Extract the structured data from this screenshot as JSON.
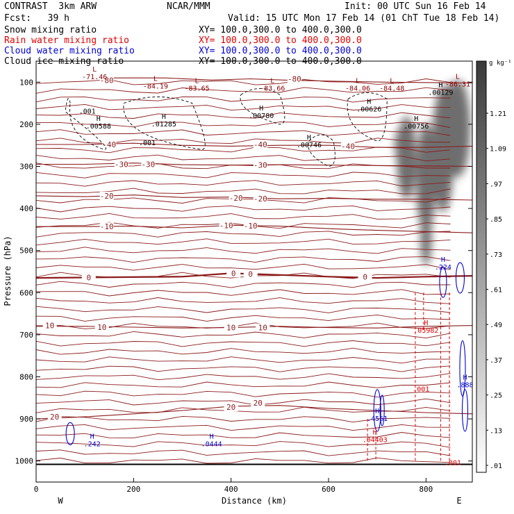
{
  "header": {
    "model": "CONTRAST  3km ARW",
    "org": "NCAR/MMM",
    "init": "Init: 00 UTC Sun 16 Feb 14",
    "fcst": "Fcst:   39 h",
    "valid": "Valid: 15 UTC Mon 17 Feb 14 (01 ChT Tue 18 Feb 14)",
    "fields": [
      {
        "label": "Snow mixing ratio",
        "xy": "XY= 100.0,300.0 to 400.0,300.0",
        "color": "#000000"
      },
      {
        "label": "Rain water mixing ratio",
        "xy": "XY= 100.0,300.0 to 400.0,300.0",
        "color": "#e00000"
      },
      {
        "label": "Cloud water mixing ratio",
        "xy": "XY= 100.0,300.0 to 400.0,300.0",
        "color": "#0000d0"
      },
      {
        "label": "Cloud ice mixing ratio",
        "xy": "XY= 100.0,300.0 to 400.0,300.0",
        "color": "#000000"
      }
    ]
  },
  "chart_data": {
    "type": "contour",
    "xlabel": "Distance (km)",
    "ylabel": "Pressure (hPa)",
    "xlim": [
      0,
      895
    ],
    "ylim": [
      1050,
      50
    ],
    "x_ticks": [
      0,
      200,
      400,
      600,
      800
    ],
    "y_ticks": [
      100,
      200,
      300,
      400,
      500,
      600,
      700,
      800,
      900,
      1000
    ],
    "x_end_labels": {
      "left": "W",
      "right": "E"
    },
    "colorbar": {
      "unit": "g kg⁻¹",
      "ticks": [
        "1.21",
        "1.09",
        ".97",
        ".85",
        ".73",
        ".61",
        ".49",
        ".37",
        ".25",
        ".13",
        ".01"
      ]
    },
    "temperature_contours": [
      {
        "label": "-80",
        "points": [
          [
            140,
            90
          ],
          [
            195,
            90
          ],
          [
            265,
            90
          ],
          [
            360,
            95
          ],
          [
            440,
            92
          ],
          [
            510,
            95
          ],
          [
            620,
            98
          ],
          [
            720,
            100
          ],
          [
            895,
            102
          ]
        ],
        "label_at": [
          [
            145,
            95
          ],
          [
            530,
            92
          ]
        ]
      },
      {
        "label": "-40",
        "points": [
          [
            0,
            248
          ],
          [
            100,
            248
          ],
          [
            200,
            245
          ],
          [
            300,
            250
          ],
          [
            400,
            252
          ],
          [
            500,
            250
          ],
          [
            600,
            250
          ],
          [
            700,
            255
          ],
          [
            800,
            255
          ],
          [
            895,
            252
          ]
        ],
        "label_at": [
          [
            150,
            248
          ],
          [
            460,
            248
          ],
          [
            640,
            252
          ]
        ]
      },
      {
        "label": "-30",
        "points": [
          [
            0,
            295
          ],
          [
            100,
            295
          ],
          [
            200,
            292
          ],
          [
            300,
            296
          ],
          [
            400,
            297
          ],
          [
            500,
            296
          ],
          [
            600,
            297
          ],
          [
            700,
            298
          ],
          [
            800,
            299
          ],
          [
            895,
            300
          ]
        ],
        "label_at": [
          [
            175,
            295
          ],
          [
            230,
            295
          ],
          [
            460,
            297
          ]
        ]
      },
      {
        "label": "-20",
        "points": [
          [
            0,
            370
          ],
          [
            100,
            372
          ],
          [
            200,
            368
          ],
          [
            300,
            374
          ],
          [
            400,
            373
          ],
          [
            500,
            377
          ],
          [
            600,
            376
          ],
          [
            700,
            378
          ],
          [
            800,
            378
          ],
          [
            895,
            380
          ]
        ],
        "label_at": [
          [
            145,
            370
          ],
          [
            410,
            375
          ],
          [
            460,
            377
          ]
        ]
      },
      {
        "label": "-10",
        "points": [
          [
            0,
            443
          ],
          [
            100,
            443
          ],
          [
            200,
            442
          ],
          [
            300,
            446
          ],
          [
            400,
            440
          ],
          [
            500,
            442
          ],
          [
            600,
            448
          ],
          [
            700,
            452
          ],
          [
            800,
            455
          ],
          [
            895,
            458
          ]
        ],
        "label_at": [
          [
            145,
            443
          ],
          [
            390,
            440
          ],
          [
            440,
            441
          ]
        ]
      },
      {
        "label": "0",
        "points": [
          [
            0,
            565
          ],
          [
            100,
            564
          ],
          [
            200,
            563
          ],
          [
            300,
            562
          ],
          [
            400,
            554
          ],
          [
            500,
            558
          ],
          [
            600,
            562
          ],
          [
            700,
            565
          ],
          [
            800,
            562
          ],
          [
            895,
            560
          ]
        ],
        "label_at": [
          [
            108,
            564
          ],
          [
            405,
            554
          ],
          [
            440,
            556
          ],
          [
            675,
            562
          ]
        ]
      },
      {
        "label": "10",
        "points": [
          [
            0,
            680
          ],
          [
            100,
            680
          ],
          [
            200,
            682
          ],
          [
            300,
            684
          ],
          [
            400,
            683
          ],
          [
            500,
            680
          ],
          [
            600,
            683
          ],
          [
            700,
            684
          ],
          [
            800,
            680
          ],
          [
            895,
            678
          ]
        ],
        "label_at": [
          [
            28,
            678
          ],
          [
            135,
            682
          ],
          [
            400,
            683
          ],
          [
            465,
            683
          ]
        ]
      },
      {
        "label": "20",
        "points": [
          [
            0,
            900
          ],
          [
            100,
            895
          ],
          [
            200,
            888
          ],
          [
            300,
            880
          ],
          [
            400,
            870
          ],
          [
            500,
            868
          ],
          [
            600,
            875
          ],
          [
            700,
            880
          ],
          [
            800,
            885
          ],
          [
            895,
            888
          ]
        ],
        "label_at": [
          [
            38,
            895
          ],
          [
            400,
            872
          ],
          [
            455,
            862
          ]
        ]
      }
    ],
    "extremum_labels": [
      {
        "kind": "L",
        "value": "-71.46",
        "x": 120,
        "p": 88,
        "color": "#8b0000"
      },
      {
        "kind": "L",
        "value": "-84.19",
        "x": 245,
        "p": 110,
        "color": "#8b0000"
      },
      {
        "kind": "L",
        "value": "-83.65",
        "x": 330,
        "p": 115,
        "color": "#8b0000"
      },
      {
        "kind": "L",
        "value": "-83.66",
        "x": 485,
        "p": 115,
        "color": "#8b0000"
      },
      {
        "kind": "L",
        "value": "-84.06",
        "x": 660,
        "p": 115,
        "color": "#8b0000"
      },
      {
        "kind": "L",
        "value": "-84.48",
        "x": 730,
        "p": 115,
        "color": "#8b0000"
      },
      {
        "kind": "L",
        "value": "-86.31",
        "x": 865,
        "p": 105,
        "color": "#8b0000"
      },
      {
        "kind": "H",
        "value": ".00588",
        "x": 128,
        "p": 205,
        "color": "#000000"
      },
      {
        "kind": "H",
        "value": ".01285",
        "x": 262,
        "p": 200,
        "color": "#000000"
      },
      {
        "kind": "H",
        "value": ".00780",
        "x": 462,
        "p": 180,
        "color": "#000000"
      },
      {
        "kind": "H",
        "value": ".00626",
        "x": 683,
        "p": 165,
        "color": "#000000"
      },
      {
        "kind": "H",
        "value": ".00756",
        "x": 780,
        "p": 205,
        "color": "#000000"
      },
      {
        "kind": "H",
        "value": ".00746",
        "x": 560,
        "p": 250,
        "color": "#000000"
      },
      {
        "kind": "H",
        "value": ".00129",
        "x": 830,
        "p": 125,
        "color": "#000000"
      },
      {
        "kind": "",
        "value": ".001",
        "x": 105,
        "p": 170,
        "color": "#000000"
      },
      {
        "kind": "",
        "value": ".001",
        "x": 228,
        "p": 245,
        "color": "#000000"
      },
      {
        "kind": "H",
        "value": ".224",
        "x": 835,
        "p": 540,
        "color": "#0000d0"
      },
      {
        "kind": "H",
        "value": ".05982",
        "x": 800,
        "p": 690,
        "color": "#e00000"
      },
      {
        "kind": "",
        "value": ".001",
        "x": 790,
        "p": 830,
        "color": "#e00000"
      },
      {
        "kind": "",
        "value": ".001",
        "x": 855,
        "p": 1005,
        "color": "#e00000"
      },
      {
        "kind": "H",
        "value": ".4561",
        "x": 700,
        "p": 900,
        "color": "#0000d0"
      },
      {
        "kind": "H",
        "value": ".04403",
        "x": 695,
        "p": 950,
        "color": "#e00000"
      },
      {
        "kind": "H",
        "value": ".242",
        "x": 115,
        "p": 960,
        "color": "#0000d0"
      },
      {
        "kind": "H",
        "value": ".0444",
        "x": 360,
        "p": 960,
        "color": "#0000d0"
      },
      {
        "kind": "H",
        "value": ".888",
        "x": 880,
        "p": 820,
        "color": "#0000d0"
      }
    ]
  }
}
